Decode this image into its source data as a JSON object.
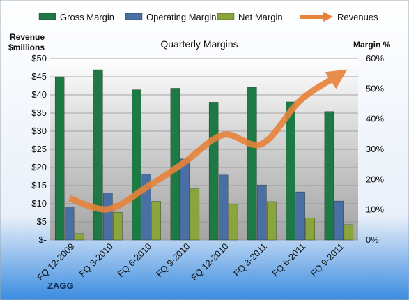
{
  "chart_data": {
    "type": "bar+line",
    "title": "Quarterly Margins",
    "brand": "ZAGG",
    "categories": [
      "FQ 12-2009",
      "FQ 3-2010",
      "FQ 6-2010",
      "FQ 9-2010",
      "FQ 12-2010",
      "FQ 3-2011",
      "FQ 6-2011",
      "FQ 9-2011"
    ],
    "left_axis": {
      "title_line1": "Revenue",
      "title_line2": "$millions",
      "ticks": [
        "$-",
        "$5",
        "$10",
        "$15",
        "$20",
        "$25",
        "$30",
        "$35",
        "$40",
        "$45",
        "$50"
      ],
      "ylim": [
        0,
        50
      ]
    },
    "right_axis": {
      "title": "Margin %",
      "ticks": [
        "0%",
        "10%",
        "20%",
        "30%",
        "40%",
        "50%",
        "60%"
      ],
      "ylim": [
        0,
        60
      ]
    },
    "series": [
      {
        "name": "Gross Margin",
        "axis": "right",
        "kind": "bar",
        "color": "#1e7a45",
        "values": [
          54,
          56.3,
          49.7,
          50.2,
          45.6,
          50.5,
          45.7,
          42.5
        ]
      },
      {
        "name": "Operating Margin",
        "axis": "right",
        "kind": "bar",
        "color": "#4a6fa5",
        "values": [
          11,
          15.5,
          21.8,
          26.8,
          21.5,
          18.2,
          15.9,
          12.9
        ]
      },
      {
        "name": "Net Margin",
        "axis": "right",
        "kind": "bar",
        "color": "#8aa63a",
        "values": [
          2.1,
          9.2,
          12.8,
          16.9,
          11.8,
          12.7,
          7.3,
          5.1
        ]
      },
      {
        "name": "Revenues",
        "axis": "left",
        "kind": "line",
        "color": "#e8823a",
        "values": [
          11.5,
          8.5,
          14.5,
          21.5,
          29,
          26.5,
          38.5,
          45.5
        ]
      }
    ],
    "legend_placement": "top",
    "grid": true
  }
}
